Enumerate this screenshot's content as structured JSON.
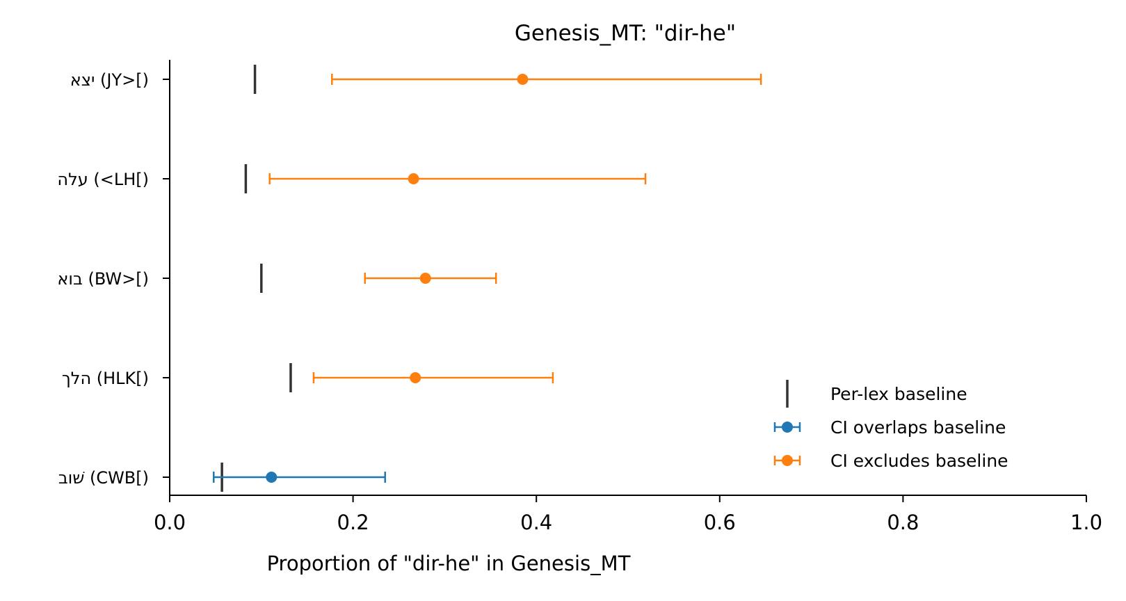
{
  "chart_data": {
    "type": "errorbar",
    "title": "Genesis_MT: \"dir-he\"",
    "xlabel": "Proportion of \"dir-he\" in Genesis_MT",
    "ylabel": "",
    "xlim": [
      0.0,
      1.0
    ],
    "xticks": [
      "0.0",
      "0.2",
      "0.4",
      "0.6",
      "0.8",
      "1.0"
    ],
    "grid": false,
    "legend_position": "lower-right",
    "colors": {
      "baseline": "#333333",
      "overlaps": "#1f77b4",
      "excludes": "#ff7f0e"
    },
    "legend": [
      {
        "key": "baseline",
        "label": "Per-lex baseline"
      },
      {
        "key": "overlaps",
        "label": "CI overlaps baseline"
      },
      {
        "key": "excludes",
        "label": "CI excludes baseline"
      }
    ],
    "categories": [
      {
        "label": "יצא (JY>[)",
        "estimate": 0.385,
        "ci_low": 0.177,
        "ci_high": 0.645,
        "baseline": 0.093,
        "status": "excludes"
      },
      {
        "label": "עלה (<LH[)",
        "estimate": 0.266,
        "ci_low": 0.109,
        "ci_high": 0.519,
        "baseline": 0.083,
        "status": "excludes"
      },
      {
        "label": "בוא (BW>[)",
        "estimate": 0.279,
        "ci_low": 0.213,
        "ci_high": 0.356,
        "baseline": 0.1,
        "status": "excludes"
      },
      {
        "label": "הלך (HLK[)",
        "estimate": 0.268,
        "ci_low": 0.157,
        "ci_high": 0.418,
        "baseline": 0.132,
        "status": "excludes"
      },
      {
        "label": "שׁוב (CWB[)",
        "estimate": 0.111,
        "ci_low": 0.048,
        "ci_high": 0.235,
        "baseline": 0.057,
        "status": "overlaps"
      }
    ]
  }
}
